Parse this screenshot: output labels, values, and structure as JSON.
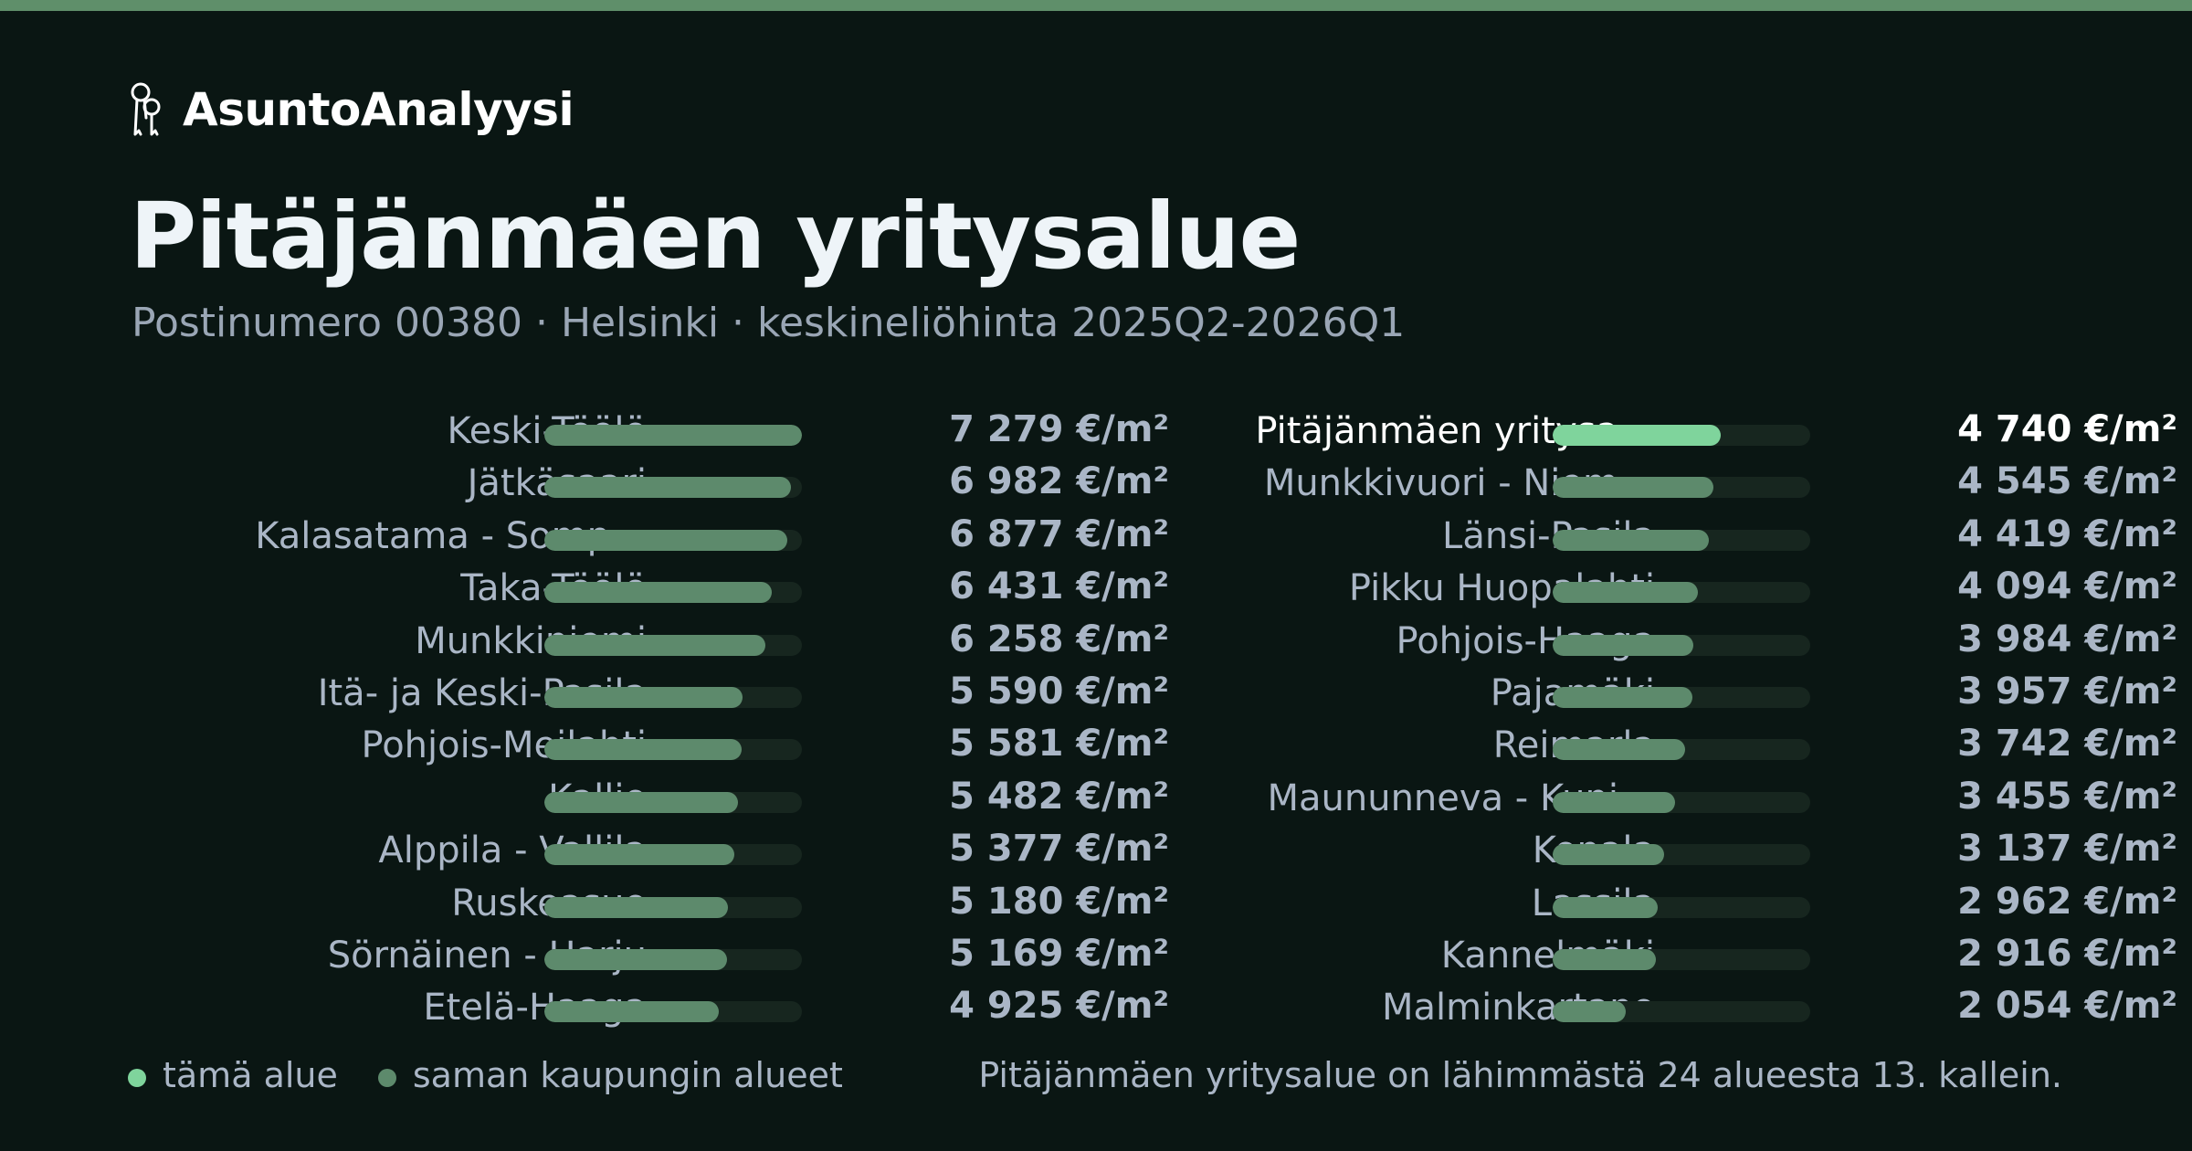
{
  "brand": {
    "name": "AsuntoAnalyysi",
    "icon": "keys-icon"
  },
  "header": {
    "title": "Pitäjänmäen yritysalue",
    "subtitle": "Postinumero 00380 · Helsinki · keskineliöhinta 2025Q2-2026Q1"
  },
  "colors": {
    "background": "#0a1613",
    "accent": "#5f8f6a",
    "this_area": "#7fd49c",
    "other_areas": "#5d8a6c",
    "track": "#17261f",
    "muted_text": "#aab6c6"
  },
  "legend": {
    "this_area": "tämä alue",
    "other_areas": "saman kaupungin alueet"
  },
  "rank_note": "Pitäjänmäen yritysalue on lähimmästä 24 alueesta 13. kallein.",
  "chart_data": {
    "type": "bar",
    "orientation": "horizontal",
    "unit": "€/m²",
    "xlim": [
      0,
      7279
    ],
    "highlight_index": 12,
    "categories": [
      "Keski-Töölö",
      "Jätkäsaari",
      "Kalasatama - Somp…",
      "Taka-Töölö",
      "Munkkiniemi",
      "Itä- ja Keski-Pasila",
      "Pohjois-Meilahti",
      "Kallio",
      "Alppila - Vallila",
      "Ruskeasuo",
      "Sörnäinen - Harju",
      "Etelä-Haaga",
      "Pitäjänmäen yritysa…",
      "Munkkivuori - Niem…",
      "Länsi-Pasila",
      "Pikku Huopalahti",
      "Pohjois-Haaga",
      "Pajamäki",
      "Reimarla",
      "Maununneva - Kuni…",
      "Konala",
      "Lassila",
      "Kannelmäki",
      "Malminkartano"
    ],
    "values": [
      7279,
      6982,
      6877,
      6431,
      6258,
      5590,
      5581,
      5482,
      5377,
      5180,
      5169,
      4925,
      4740,
      4545,
      4419,
      4094,
      3984,
      3957,
      3742,
      3455,
      3137,
      2962,
      2916,
      2054
    ],
    "value_labels": [
      "7 279 €/m²",
      "6 982 €/m²",
      "6 877 €/m²",
      "6 431 €/m²",
      "6 258 €/m²",
      "5 590 €/m²",
      "5 581 €/m²",
      "5 482 €/m²",
      "5 377 €/m²",
      "5 180 €/m²",
      "5 169 €/m²",
      "4 925 €/m²",
      "4 740 €/m²",
      "4 545 €/m²",
      "4 419 €/m²",
      "4 094 €/m²",
      "3 984 €/m²",
      "3 957 €/m²",
      "3 742 €/m²",
      "3 455 €/m²",
      "3 137 €/m²",
      "2 962 €/m²",
      "2 916 €/m²",
      "2 054 €/m²"
    ]
  }
}
